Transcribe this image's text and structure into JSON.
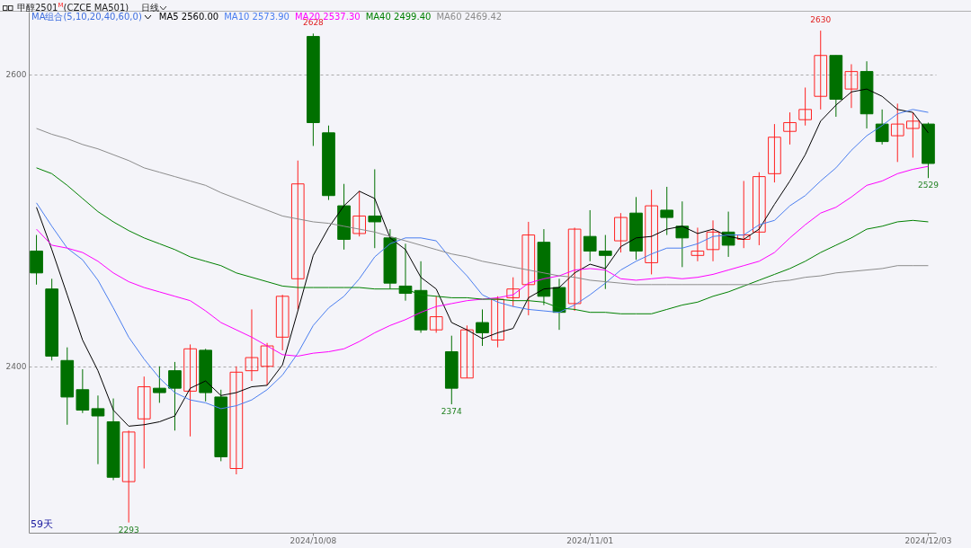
{
  "chart_data": {
    "type": "candlestick",
    "title": "甲醇2501$^{M}$(CZCE MA501)",
    "subtitle": "日线",
    "legend_title": "MA组合(5,10,20,40,60,0)",
    "legend": "top left",
    "grid": "y",
    "categories": [
      null,
      null,
      null,
      null,
      null,
      null,
      null,
      null,
      null,
      null,
      null,
      null,
      null,
      null,
      null,
      null,
      null,
      null,
      "2024/10/08",
      null,
      null,
      null,
      null,
      null,
      null,
      null,
      null,
      null,
      null,
      null,
      null,
      null,
      null,
      null,
      null,
      null,
      "2024/11/01",
      null,
      null,
      null,
      null,
      null,
      null,
      null,
      null,
      null,
      null,
      null,
      null,
      null,
      null,
      null,
      null,
      null,
      null,
      null,
      null,
      null,
      "2024/12/03"
    ],
    "ylim": [
      2286,
      2643
    ],
    "yticks": [
      2400,
      2600
    ],
    "ohlc": [
      [
        2479,
        2490,
        2456,
        2464
      ],
      [
        2453,
        2460,
        2404,
        2407
      ],
      [
        2404,
        2413,
        2360,
        2379
      ],
      [
        2384,
        2398,
        2368,
        2370
      ],
      [
        2371,
        2380,
        2333,
        2366
      ],
      [
        2362,
        2378,
        2322,
        2324
      ],
      [
        2321,
        2356,
        2293,
        2355
      ],
      [
        2364,
        2393,
        2330,
        2386
      ],
      [
        2385,
        2400,
        2375,
        2382
      ],
      [
        2397,
        2403,
        2356,
        2385
      ],
      [
        2383,
        2415,
        2352,
        2412
      ],
      [
        2411,
        2412,
        2376,
        2382
      ],
      [
        2379,
        2384,
        2335,
        2338
      ],
      [
        2330,
        2400,
        2326,
        2396
      ],
      [
        2397,
        2439,
        2390,
        2406
      ],
      [
        2400,
        2416,
        2387,
        2414
      ],
      [
        2420,
        2449,
        2411,
        2448
      ],
      [
        2460,
        2541,
        2439,
        2525
      ],
      [
        2626,
        2628,
        2551,
        2567
      ],
      [
        2560,
        2565,
        2514,
        2517
      ],
      [
        2510,
        2525,
        2480,
        2487
      ],
      [
        2491,
        2520,
        2489,
        2503
      ],
      [
        2503,
        2535,
        2481,
        2499
      ],
      [
        2488,
        2494,
        2453,
        2457
      ],
      [
        2455,
        2484,
        2445,
        2450
      ],
      [
        2452,
        2472,
        2423,
        2425
      ],
      [
        2425,
        2448,
        2423,
        2434
      ],
      [
        2410,
        2421,
        2374,
        2385
      ],
      [
        2392,
        2428,
        2392,
        2425
      ],
      [
        2430,
        2439,
        2414,
        2423
      ],
      [
        2418,
        2448,
        2413,
        2446
      ],
      [
        2447,
        2461,
        2441,
        2453
      ],
      [
        2456,
        2499,
        2435,
        2490
      ],
      [
        2485,
        2494,
        2442,
        2448
      ],
      [
        2454,
        2460,
        2425,
        2437
      ],
      [
        2443,
        2495,
        2438,
        2494
      ],
      [
        2489,
        2507,
        2472,
        2479
      ],
      [
        2479,
        2490,
        2453,
        2476
      ],
      [
        2486,
        2505,
        2478,
        2502
      ],
      [
        2505,
        2516,
        2473,
        2479
      ],
      [
        2471,
        2521,
        2463,
        2510
      ],
      [
        2507,
        2523,
        2490,
        2502
      ],
      [
        2496,
        2513,
        2468,
        2488
      ],
      [
        2476,
        2495,
        2472,
        2479
      ],
      [
        2480,
        2500,
        2472,
        2492
      ],
      [
        2492,
        2506,
        2475,
        2483
      ],
      [
        2487,
        2527,
        2481,
        2490
      ],
      [
        2492,
        2533,
        2483,
        2530
      ],
      [
        2532,
        2566,
        2526,
        2557
      ],
      [
        2561,
        2574,
        2552,
        2567
      ],
      [
        2569,
        2591,
        2565,
        2576
      ],
      [
        2585,
        2630,
        2576,
        2613
      ],
      [
        2613,
        2613,
        2571,
        2583
      ],
      [
        2590,
        2607,
        2577,
        2602
      ],
      [
        2602,
        2609,
        2563,
        2573
      ],
      [
        2566,
        2576,
        2552,
        2554
      ],
      [
        2558,
        2580,
        2540,
        2566
      ],
      [
        2563,
        2574,
        2543,
        2568
      ],
      [
        2566,
        2567,
        2529,
        2539
      ]
    ],
    "colors": [
      "#007000",
      "#007000",
      "#007000",
      "#007000",
      "#007000",
      "#007000",
      "#ff2020",
      "#ff2020",
      "#007000",
      "#007000",
      "#ff2020",
      "#007000",
      "#007000",
      "#ff2020",
      "#ff2020",
      "#ff2020",
      "#ff2020",
      "#ff2020",
      "#007000",
      "#007000",
      "#007000",
      "#ff2020",
      "#007000",
      "#007000",
      "#007000",
      "#007000",
      "#ff2020",
      "#007000",
      "#ff2020",
      "#007000",
      "#ff2020",
      "#ff2020",
      "#ff2020",
      "#007000",
      "#007000",
      "#ff2020",
      "#007000",
      "#007000",
      "#ff2020",
      "#007000",
      "#ff2020",
      "#007000",
      "#007000",
      "#ff2020",
      "#ff2020",
      "#007000",
      "#ff2020",
      "#ff2020",
      "#ff2020",
      "#ff2020",
      "#ff2020",
      "#ff2020",
      "#007000",
      "#ff2020",
      "#007000",
      "#007000",
      "#ff2020",
      "#ff2020",
      "#007000"
    ],
    "series": [
      {
        "name": "MA5 2560.00",
        "type": "line",
        "color": "#000000",
        "values": [
          2509,
          2480,
          2449,
          2418,
          2397,
          2370,
          2359,
          2360,
          2362,
          2366,
          2385,
          2390,
          2380,
          2382,
          2386,
          2387,
          2401,
          2438,
          2476,
          2495,
          2510,
          2520,
          2515,
          2488,
          2480,
          2461,
          2453,
          2430,
          2425,
          2419,
          2423,
          2426,
          2447,
          2453,
          2454,
          2464,
          2470,
          2467,
          2482,
          2488,
          2489,
          2494,
          2496,
          2491,
          2494,
          2489,
          2487,
          2494,
          2511,
          2527,
          2545,
          2568,
          2579,
          2588,
          2590,
          2585,
          2576,
          2574,
          2560
        ]
      },
      {
        "name": "MA10 2573.90",
        "type": "line",
        "color": "#4a7ef0",
        "values": [
          2512,
          2496,
          2481,
          2473,
          2459,
          2440,
          2420,
          2405,
          2392,
          2382,
          2377,
          2375,
          2371,
          2373,
          2377,
          2384,
          2394,
          2409,
          2428,
          2440,
          2448,
          2460,
          2475,
          2484,
          2488,
          2488,
          2486,
          2473,
          2462,
          2449,
          2444,
          2441,
          2439,
          2438,
          2437,
          2442,
          2449,
          2457,
          2466,
          2472,
          2477,
          2481,
          2481,
          2484,
          2489,
          2490,
          2490,
          2497,
          2500,
          2510,
          2517,
          2527,
          2536,
          2548,
          2558,
          2565,
          2573,
          2576,
          2574
        ]
      },
      {
        "name": "MA20 2537.30",
        "type": "line",
        "color": "#ff00ff",
        "values": [
          2494,
          2483,
          2481,
          2478,
          2472,
          2464,
          2458,
          2454,
          2451,
          2448,
          2445,
          2438,
          2430,
          2425,
          2420,
          2414,
          2408,
          2407,
          2409,
          2410,
          2412,
          2417,
          2423,
          2428,
          2432,
          2437,
          2441,
          2443,
          2445,
          2446,
          2447,
          2449,
          2457,
          2460,
          2462,
          2466,
          2467,
          2466,
          2460,
          2459,
          2460,
          2461,
          2460,
          2461,
          2463,
          2466,
          2469,
          2472,
          2478,
          2488,
          2497,
          2505,
          2509,
          2516,
          2524,
          2527,
          2532,
          2535,
          2537
        ]
      },
      {
        "name": "MA40 2499.40",
        "type": "line",
        "color": "#008000",
        "values": [
          2536,
          2532,
          2524,
          2515,
          2506,
          2499,
          2493,
          2488,
          2484,
          2480,
          2475,
          2472,
          2469,
          2464,
          2461,
          2458,
          2455,
          2454,
          2454,
          2454,
          2454,
          2454,
          2453,
          2453,
          2453,
          2449,
          2448,
          2447,
          2447,
          2446,
          2446,
          2445,
          2445,
          2444,
          2440,
          2439,
          2437,
          2437,
          2436,
          2436,
          2436,
          2439,
          2442,
          2444,
          2448,
          2451,
          2455,
          2459,
          2463,
          2467,
          2472,
          2478,
          2483,
          2488,
          2494,
          2496,
          2499,
          2500,
          2499
        ]
      },
      {
        "name": "MA60 2469.42",
        "type": "line",
        "color": "#8c8c8c",
        "values": [
          2563,
          2559,
          2556,
          2552,
          2549,
          2545,
          2541,
          2536,
          2533,
          2530,
          2527,
          2524,
          2519,
          2515,
          2511,
          2507,
          2503,
          2501,
          2499,
          2498,
          2496,
          2494,
          2492,
          2489,
          2486,
          2483,
          2480,
          2477,
          2475,
          2472,
          2470,
          2468,
          2466,
          2464,
          2462,
          2461,
          2459,
          2458,
          2457,
          2456,
          2456,
          2456,
          2456,
          2456,
          2456,
          2456,
          2456,
          2456,
          2458,
          2459,
          2461,
          2462,
          2464,
          2465,
          2466,
          2467,
          2469,
          2469,
          2469
        ]
      }
    ],
    "annotations": [
      {
        "text": "2628",
        "x": "2024/10/08",
        "y": 2628
      },
      {
        "text": "2293",
        "y": 2293
      },
      {
        "text": "2374",
        "y": 2374
      },
      {
        "text": "2630",
        "y": 2630
      },
      {
        "text": "2529",
        "y": 2529
      },
      "59天"
    ]
  }
}
